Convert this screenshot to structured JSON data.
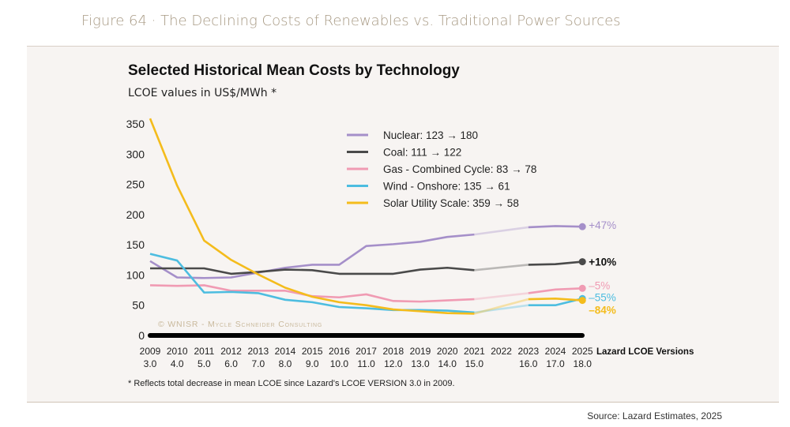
{
  "figure_title": "Figure 64 · The Declining Costs of Renewables vs. Traditional Power Sources",
  "source": "Source: Lazard Estimates, 2025",
  "chart_data": {
    "type": "line",
    "title": "Selected Historical Mean Costs by Technology",
    "subtitle": "LCOE values in US$/MWh *",
    "footnote": "* Reflects total decrease in mean LCOE since Lazard's  LCOE VERSION 3.0 in 2009.",
    "watermark": "© WNISR - Mycle Schneider Consulting",
    "x_axis_label": "Lazard LCOE Versions",
    "x": [
      2009,
      2010,
      2011,
      2012,
      2013,
      2014,
      2015,
      2016,
      2017,
      2018,
      2019,
      2020,
      2021,
      2022,
      2023,
      2024,
      2025
    ],
    "x_tick_labels": [
      "2009",
      "2010",
      "2011",
      "2012",
      "2013",
      "2014",
      "2015",
      "2016",
      "2017",
      "2018",
      "2019",
      "2020",
      "2021",
      "2022",
      "2023",
      "2024",
      "2025"
    ],
    "version_labels": [
      "3.0",
      "4.0",
      "5.0",
      "6.0",
      "7.0",
      "8.0",
      "9.0",
      "10.0",
      "11.0",
      "12.0",
      "13.0",
      "14.0",
      "15.0",
      "",
      "16.0",
      "17.0",
      "18.0"
    ],
    "y_ticks": [
      0,
      50,
      100,
      150,
      200,
      250,
      300,
      350
    ],
    "ylim": [
      0,
      360
    ],
    "grid": false,
    "legend_position": "top-center",
    "series": [
      {
        "name": "Nuclear: 123 → 180",
        "color": "#a58fc9",
        "change": "+47%",
        "values": [
          123,
          96,
          95,
          96,
          104,
          112,
          117,
          117,
          148,
          151,
          155,
          163,
          167,
          null,
          179,
          181,
          180
        ]
      },
      {
        "name": "Coal: 111 → 122",
        "color": "#4a4a4a",
        "change": "+10%",
        "values": [
          111,
          111,
          111,
          102,
          105,
          109,
          108,
          102,
          102,
          102,
          109,
          112,
          108,
          null,
          117,
          118,
          122
        ]
      },
      {
        "name": "Gas - Combined Cycle: 83 → 78",
        "color": "#f09bb3",
        "change": "–5%",
        "values": [
          83,
          82,
          83,
          74,
          74,
          74,
          65,
          63,
          68,
          57,
          56,
          58,
          60,
          null,
          70,
          76,
          78
        ]
      },
      {
        "name": "Wind - Onshore: 135 → 61",
        "color": "#4dbde0",
        "change": "–55%",
        "values": [
          135,
          124,
          71,
          72,
          70,
          59,
          55,
          47,
          45,
          42,
          42,
          41,
          38,
          null,
          50,
          50,
          61
        ]
      },
      {
        "name": "Solar Utility Scale: 359 → 58",
        "color": "#f4bc1c",
        "change": "–84%",
        "values": [
          359,
          248,
          157,
          125,
          101,
          79,
          64,
          55,
          50,
          43,
          40,
          37,
          36,
          null,
          60,
          61,
          58
        ]
      }
    ]
  }
}
